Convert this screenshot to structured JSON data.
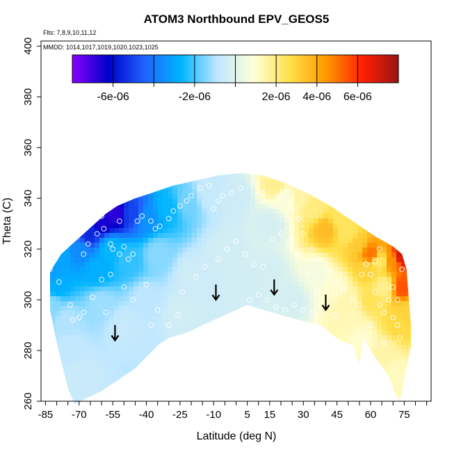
{
  "chart_data": {
    "type": "heatmap",
    "title": "ATOM3 Northbound EPV_GEOS5",
    "subtitle_flights": "Flts: 7,8,9,10,11,12",
    "subtitle_dates": "MMDD: 1014,1017,1019,1020,1023,1025",
    "xlabel": "Latitude (deg N)",
    "ylabel": "Theta (C)",
    "xlim": [
      -87,
      87
    ],
    "ylim": [
      260,
      402
    ],
    "x_ticks": [
      -85,
      -70,
      -55,
      -40,
      -25,
      -10,
      5,
      15,
      30,
      45,
      60,
      75
    ],
    "x_tick_labels": [
      "-85",
      "-70",
      "-55",
      "-40",
      "-25",
      "-10",
      "5",
      "15",
      "30",
      "45",
      "60",
      "75"
    ],
    "y_ticks": [
      260,
      280,
      300,
      320,
      340,
      360,
      380,
      400
    ],
    "y_tick_labels": [
      "260",
      "280",
      "300",
      "320",
      "340",
      "360",
      "380",
      "400"
    ],
    "colorbar": {
      "range": [
        -8e-06,
        8e-06
      ],
      "colors": [
        "#8a00ff",
        "#0000c8",
        "#1e64ff",
        "#00b4ff",
        "#bfe7ff",
        "#ffffd8",
        "#ffe04a",
        "#ff9a00",
        "#ff2000",
        "#9a1414"
      ],
      "tick_values": [
        -6e-06,
        -2e-06,
        2e-06,
        4e-06,
        6e-06
      ],
      "tick_labels": [
        "-6e-06",
        "-2e-06",
        "2e-06",
        "4e-06",
        "6e-06"
      ]
    },
    "top_boundary": [
      [
        -83,
        311
      ],
      [
        -78,
        318
      ],
      [
        -73,
        322
      ],
      [
        -68,
        326
      ],
      [
        -63,
        330
      ],
      [
        -58,
        334
      ],
      [
        -53,
        337
      ],
      [
        -45,
        340
      ],
      [
        -38,
        342
      ],
      [
        -28,
        345
      ],
      [
        -18,
        347
      ],
      [
        -8,
        349
      ],
      [
        2,
        350
      ],
      [
        12,
        349
      ],
      [
        22,
        346
      ],
      [
        32,
        342
      ],
      [
        42,
        337
      ],
      [
        52,
        331
      ],
      [
        62,
        325
      ],
      [
        70,
        321
      ],
      [
        74,
        318
      ],
      [
        76,
        312
      ],
      [
        78,
        290
      ]
    ],
    "bottom_boundary": [
      [
        -83,
        296
      ],
      [
        -80,
        283
      ],
      [
        -75,
        265
      ],
      [
        -72,
        259
      ],
      [
        -60,
        264
      ],
      [
        -45,
        273
      ],
      [
        -35,
        282
      ],
      [
        -30,
        285
      ],
      [
        -22,
        287
      ],
      [
        -10,
        292
      ],
      [
        0,
        296
      ],
      [
        5,
        298
      ],
      [
        12,
        296
      ],
      [
        20,
        294
      ],
      [
        28,
        292
      ],
      [
        38,
        290
      ],
      [
        46,
        284
      ],
      [
        52,
        282
      ],
      [
        55,
        275
      ],
      [
        57,
        285
      ],
      [
        60,
        280
      ],
      [
        64,
        275
      ],
      [
        68,
        270
      ],
      [
        71,
        263
      ],
      [
        73,
        260
      ],
      [
        78,
        282
      ]
    ],
    "arrows": [
      {
        "lat": -54,
        "theta": 284
      },
      {
        "lat": -9,
        "theta": 300
      },
      {
        "lat": 17,
        "theta": 302
      },
      {
        "lat": 40,
        "theta": 296
      }
    ],
    "field_anchors": [
      {
        "lat": -84,
        "theta": 310,
        "value": -3.2e-06
      },
      {
        "lat": -80,
        "theta": 305,
        "value": -2.8e-06
      },
      {
        "lat": -82,
        "theta": 298,
        "value": -1.4e-06
      },
      {
        "lat": -76,
        "theta": 292,
        "value": -1e-06
      },
      {
        "lat": -74,
        "theta": 280,
        "value": -8e-07
      },
      {
        "lat": -70,
        "theta": 270,
        "value": -6e-07
      },
      {
        "lat": -78,
        "theta": 318,
        "value": -3e-06
      },
      {
        "lat": -70,
        "theta": 320,
        "value": -3.6e-06
      },
      {
        "lat": -66,
        "theta": 326,
        "value": -5.5e-06
      },
      {
        "lat": -60,
        "theta": 331,
        "value": -6.5e-06
      },
      {
        "lat": -54,
        "theta": 334,
        "value": -6.8e-06
      },
      {
        "lat": -46,
        "theta": 334,
        "value": -5e-06
      },
      {
        "lat": -40,
        "theta": 332,
        "value": -3.4e-06
      },
      {
        "lat": -56,
        "theta": 320,
        "value": -2.6e-06
      },
      {
        "lat": -62,
        "theta": 312,
        "value": -2.8e-06
      },
      {
        "lat": -48,
        "theta": 316,
        "value": -2.2e-06
      },
      {
        "lat": -35,
        "theta": 318,
        "value": -1.4e-06
      },
      {
        "lat": -30,
        "theta": 336,
        "value": -2.6e-06
      },
      {
        "lat": -22,
        "theta": 338,
        "value": -1.6e-06
      },
      {
        "lat": -12,
        "theta": 342,
        "value": -7e-07
      },
      {
        "lat": -60,
        "theta": 298,
        "value": -1.2e-06
      },
      {
        "lat": -50,
        "theta": 290,
        "value": -7e-07
      },
      {
        "lat": -40,
        "theta": 300,
        "value": -9e-07
      },
      {
        "lat": -20,
        "theta": 310,
        "value": -5e-07
      },
      {
        "lat": -25,
        "theta": 295,
        "value": -4e-07
      },
      {
        "lat": -5,
        "theta": 320,
        "value": -4e-07
      },
      {
        "lat": 0,
        "theta": 340,
        "value": -5e-07
      },
      {
        "lat": 5,
        "theta": 305,
        "value": -4e-07
      },
      {
        "lat": 15,
        "theta": 330,
        "value": -3e-07
      },
      {
        "lat": 15,
        "theta": 310,
        "value": -3e-07
      },
      {
        "lat": 25,
        "theta": 300,
        "value": -3e-07
      },
      {
        "lat": 22,
        "theta": 340,
        "value": 7e-07
      },
      {
        "lat": 18,
        "theta": 345,
        "value": 1.8e-06
      },
      {
        "lat": 28,
        "theta": 341,
        "value": 1.5e-06
      },
      {
        "lat": 35,
        "theta": 336,
        "value": 2e-06
      },
      {
        "lat": 40,
        "theta": 328,
        "value": 3.6e-06
      },
      {
        "lat": 46,
        "theta": 332,
        "value": 2.4e-06
      },
      {
        "lat": 50,
        "theta": 326,
        "value": 2.4e-06
      },
      {
        "lat": 54,
        "theta": 322,
        "value": 3.2e-06
      },
      {
        "lat": 36,
        "theta": 310,
        "value": 6e-07
      },
      {
        "lat": 45,
        "theta": 305,
        "value": 1e-06
      },
      {
        "lat": 50,
        "theta": 300,
        "value": 1.4e-06
      },
      {
        "lat": 52,
        "theta": 292,
        "value": 1.3e-06
      },
      {
        "lat": 58,
        "theta": 312,
        "value": 3e-06
      },
      {
        "lat": 60,
        "theta": 318,
        "value": 5e-06
      },
      {
        "lat": 60,
        "theta": 300,
        "value": 2.5e-06
      },
      {
        "lat": 64,
        "theta": 315,
        "value": 2.3e-06
      },
      {
        "lat": 66,
        "theta": 305,
        "value": 1.8e-06
      },
      {
        "lat": 70,
        "theta": 315,
        "value": 4.6e-06
      },
      {
        "lat": 74,
        "theta": 317,
        "value": 7e-06
      },
      {
        "lat": 74,
        "theta": 305,
        "value": 5.5e-06
      },
      {
        "lat": 76,
        "theta": 295,
        "value": 3e-06
      },
      {
        "lat": 72,
        "theta": 290,
        "value": 2.8e-06
      },
      {
        "lat": 66,
        "theta": 280,
        "value": 1.5e-06
      },
      {
        "lat": 72,
        "theta": 270,
        "value": 1.2e-06
      },
      {
        "lat": 56,
        "theta": 285,
        "value": 1e-06
      }
    ],
    "observation_points": [
      [
        -83,
        312
      ],
      [
        -79,
        307
      ],
      [
        -74,
        298
      ],
      [
        -73,
        292
      ],
      [
        -70,
        293
      ],
      [
        -68,
        295
      ],
      [
        -68,
        318
      ],
      [
        -66,
        322
      ],
      [
        -62,
        326
      ],
      [
        -59,
        328
      ],
      [
        -56,
        322
      ],
      [
        -55,
        320
      ],
      [
        -52,
        318
      ],
      [
        -50,
        321
      ],
      [
        -48,
        316
      ],
      [
        -46,
        318
      ],
      [
        -44,
        331
      ],
      [
        -42,
        333
      ],
      [
        -38,
        331
      ],
      [
        -36,
        328
      ],
      [
        -34,
        329
      ],
      [
        -30,
        332
      ],
      [
        -28,
        335
      ],
      [
        -25,
        337
      ],
      [
        -22,
        339
      ],
      [
        -20,
        341
      ],
      [
        -16,
        344
      ],
      [
        -12,
        345
      ],
      [
        -10,
        336
      ],
      [
        -8,
        339
      ],
      [
        -6,
        341
      ],
      [
        -2,
        342
      ],
      [
        2,
        344
      ],
      [
        8,
        346
      ],
      [
        12,
        342
      ],
      [
        16,
        338
      ],
      [
        20,
        341
      ],
      [
        24,
        336
      ],
      [
        28,
        332
      ],
      [
        30,
        326
      ],
      [
        34,
        320
      ],
      [
        36,
        316
      ],
      [
        40,
        312
      ],
      [
        44,
        307
      ],
      [
        48,
        304
      ],
      [
        52,
        300
      ],
      [
        55,
        298
      ],
      [
        56,
        310
      ],
      [
        58,
        314
      ],
      [
        60,
        310
      ],
      [
        62,
        303
      ],
      [
        64,
        298
      ],
      [
        66,
        295
      ],
      [
        68,
        300
      ],
      [
        70,
        293
      ],
      [
        72,
        290
      ],
      [
        74,
        312
      ],
      [
        66,
        283
      ],
      [
        62,
        282
      ],
      [
        60,
        290
      ],
      [
        -60,
        308
      ],
      [
        -56,
        310
      ],
      [
        -50,
        305
      ],
      [
        -46,
        300
      ],
      [
        -40,
        306
      ],
      [
        -35,
        296
      ],
      [
        -30,
        290
      ],
      [
        -26,
        294
      ],
      [
        -24,
        303
      ],
      [
        -18,
        309
      ],
      [
        -14,
        313
      ],
      [
        -8,
        316
      ],
      [
        -4,
        320
      ],
      [
        0,
        323
      ],
      [
        4,
        318
      ],
      [
        8,
        314
      ],
      [
        12,
        313
      ],
      [
        16,
        324
      ],
      [
        20,
        326
      ],
      [
        24,
        323
      ],
      [
        28,
        318
      ],
      [
        32,
        310
      ],
      [
        36,
        303
      ],
      [
        40,
        298
      ],
      [
        44,
        294
      ],
      [
        -38,
        290
      ],
      [
        -58,
        295
      ],
      [
        -64,
        301
      ],
      [
        -60,
        333
      ],
      [
        -52,
        331
      ],
      [
        -70,
        326
      ],
      [
        -76,
        321
      ],
      [
        62,
        315
      ],
      [
        64,
        320
      ],
      [
        70,
        305
      ],
      [
        72,
        300
      ],
      [
        73,
        285
      ],
      [
        6,
        300
      ],
      [
        10,
        302
      ],
      [
        14,
        300
      ],
      [
        18,
        297
      ],
      [
        22,
        296
      ],
      [
        26,
        298
      ],
      [
        30,
        296
      ],
      [
        34,
        295
      ]
    ]
  }
}
